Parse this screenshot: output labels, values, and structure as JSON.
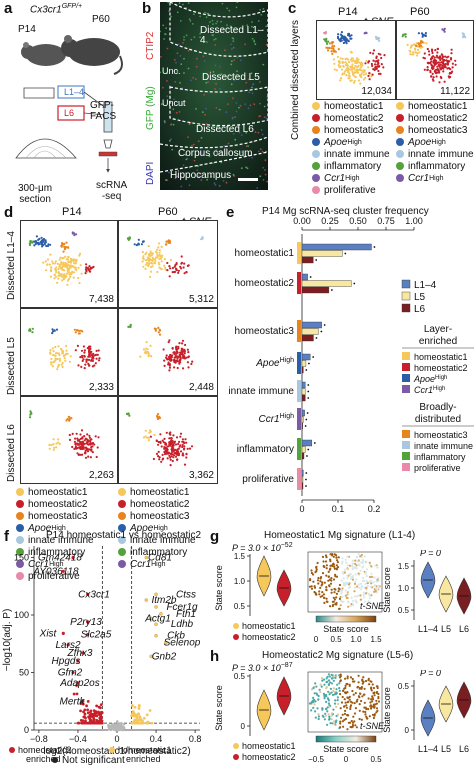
{
  "panel_letters": {
    "a": "a",
    "b": "b",
    "c": "c",
    "d": "d",
    "e": "e",
    "f": "f",
    "g": "g",
    "h": "h"
  },
  "panel_a": {
    "genotype": "Cx3cr1",
    "genotype_sup": "GFP/+",
    "age1": "P14",
    "age2": "P60",
    "layers": "L1–4",
    "layer_l6": "L6",
    "facs": "GFP-\nFACS",
    "seq": "scRNA\n-seq",
    "section": "300-μm\nsection"
  },
  "panel_b": {
    "label_ctip2": "CTIP2",
    "label_gfp": "GFP (Mg)",
    "label_dapi": "DAPI",
    "regions": [
      "Dissected L1–4",
      "Unc.",
      "Dissected L5",
      "Uncut",
      "Dissected L6",
      "Corpus callosum",
      "Hippocampus"
    ],
    "scalebar_color": "#ffffff"
  },
  "panel_c": {
    "col1": "P14",
    "col2": "P60",
    "tsne": "t-SNE",
    "row_label": "Combined dissected layers",
    "count1": "12,034",
    "count2": "11,122"
  },
  "clusters": [
    {
      "name": "homeostatic1",
      "sup": "",
      "color": "#f6c75a"
    },
    {
      "name": "homeostatic2",
      "sup": "",
      "color": "#c8202a"
    },
    {
      "name": "homeostatic3",
      "sup": "",
      "color": "#e8841e"
    },
    {
      "name": "Apoe",
      "sup": "High",
      "color": "#2c5ea8"
    },
    {
      "name": "innate immune",
      "sup": "",
      "color": "#a9c8e0"
    },
    {
      "name": "inflammatory",
      "sup": "",
      "color": "#55a13c"
    },
    {
      "name": "Ccr1",
      "sup": "High",
      "color": "#7b5aa6"
    },
    {
      "name": "proliferative",
      "sup": "",
      "color": "#e88aa8"
    }
  ],
  "panel_d": {
    "col1": "P14",
    "col2": "P60",
    "tsne": "t-SNE",
    "rows": [
      "Dissected L1–4",
      "Dissected L5",
      "Dissected L6"
    ],
    "counts": [
      [
        "7,438",
        "5,312"
      ],
      [
        "2,333",
        "2,448"
      ],
      [
        "2,263",
        "3,362"
      ]
    ]
  },
  "panel_e": {
    "chart_data": {
      "type": "bar",
      "title": "P14 Mg scRNA-seq cluster frequency",
      "x_ticks_top": [
        "0.00",
        "0.25",
        "0.50",
        "0.75",
        "1.00"
      ],
      "x_ticks_bottom": [
        "0",
        "0.1",
        "0.2"
      ],
      "categories": [
        "homeostatic1",
        "homeostatic2",
        "homeostatic3",
        "Apoe High",
        "innate immune",
        "Ccr1 High",
        "inflammatory",
        "proliferative"
      ],
      "series": [
        {
          "name": "L1–4",
          "color": "#5b80c2",
          "values": [
            0.62,
            0.05,
            0.06,
            0.025,
            0.01,
            0.008,
            0.03,
            0.004
          ]
        },
        {
          "name": "L5",
          "color": "#f8e7a0",
          "values": [
            0.36,
            0.44,
            0.05,
            0.012,
            0.01,
            0.004,
            0.01,
            0.003
          ]
        },
        {
          "name": "L6",
          "color": "#7a1e22",
          "values": [
            0.1,
            0.24,
            0.035,
            0.004,
            0.01,
            0.002,
            0.006,
            0.003
          ]
        }
      ]
    },
    "legend_enriched_title": "Layer-\nenriched",
    "legend_broad_title": "Broadly-\ndistributed",
    "legend_enriched": [
      "homeostatic1",
      "homeostatic2",
      "Apoe",
      "Ccr1"
    ],
    "legend_broad": [
      "homeostatic3",
      "innate immune",
      "inflammatory",
      "proliferative"
    ]
  },
  "panel_f": {
    "title": "P14 homeostatic1 vs homeostatic2",
    "ylabel": "−log10(adj. P)",
    "xlabel": "log2(homeostatic1/homeostatic2)",
    "x_ticks": [
      "−0.8",
      "−0.4",
      "0",
      "0.4",
      "0.8"
    ],
    "y_ticks": [
      "0",
      "50",
      "100",
      "150"
    ],
    "genes_left": [
      "Gm42418",
      "AY036118",
      "Cx3cr1",
      "P2ry13",
      "Xist",
      "Slc2a5",
      "Lars2",
      "Zfhx3",
      "Hpgds",
      "Gfm2",
      "Adap2os",
      "Mertk"
    ],
    "genes_right": [
      "Cd81",
      "Ctss",
      "Itm2b",
      "Fcer1g",
      "Fth1",
      "Actg1",
      "Ldhb",
      "Ckb",
      "Selenop",
      "Gnb2"
    ],
    "legend": [
      "homeostatic2 enriched",
      "homeostatic1 enriched",
      "Not significant"
    ],
    "legend_colors": [
      "#c8202a",
      "#f6c75a",
      "#222222"
    ]
  },
  "panel_g": {
    "title": "Homeostatic1 Mg signature (L1-4)",
    "pvalue": "P = 3.0 × 10",
    "pexp": "−52",
    "ylabel": "State score",
    "ticks_left": [
      "0.5",
      "1.0",
      "1.5"
    ],
    "legend": [
      "homeostatic1",
      "homeostatic2"
    ],
    "tsne": "t-SNE",
    "colorbar_label": "State score",
    "colorbar_ticks": [
      "0",
      "0.5",
      "1.0",
      "1.5"
    ],
    "right_p": "P = 0",
    "right_ticks": [
      "0.5",
      "1.0",
      "1.5"
    ],
    "right_xlabels": [
      "L1–4",
      "L5",
      "L6"
    ]
  },
  "panel_h": {
    "title": "Homeostatic2 Mg signature (L5-6)",
    "pvalue": "P = 3.0 × 10",
    "pexp": "−87",
    "ylabel": "State score",
    "ticks_left": [
      "0",
      "0.5"
    ],
    "legend": [
      "homeostatic1",
      "homeostatic2"
    ],
    "tsne": "t-SNE",
    "colorbar_label": "State score",
    "colorbar_ticks": [
      "−0.5",
      "0",
      "0.5"
    ],
    "right_p": "P = 0",
    "right_ticks": [
      "0",
      "0.5"
    ],
    "right_xlabels": [
      "L1–4",
      "L5",
      "L6"
    ]
  }
}
